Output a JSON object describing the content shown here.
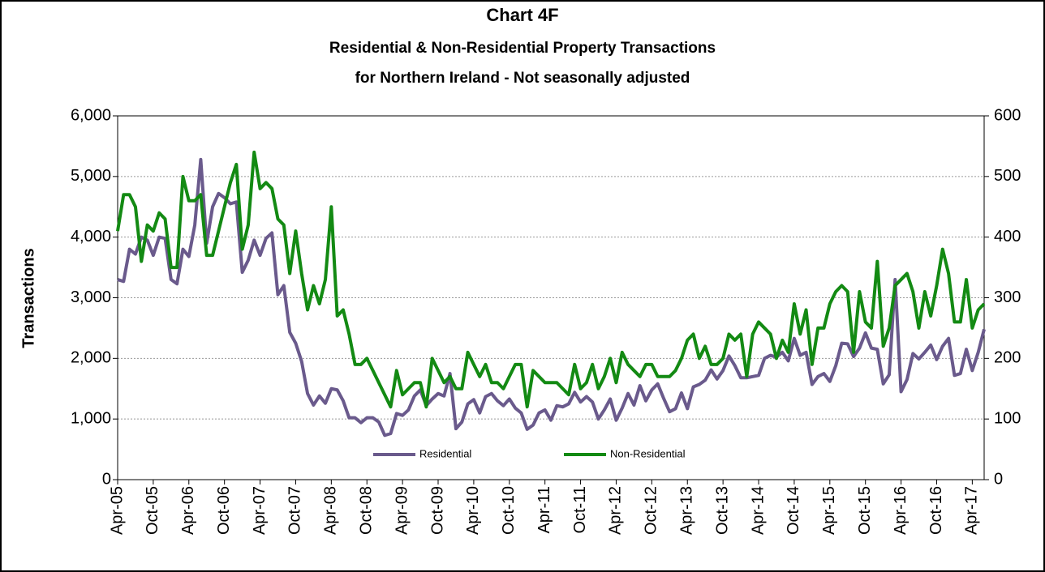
{
  "chart_data": {
    "type": "line",
    "title": "Chart 4F",
    "subtitle": [
      "Residential & Non-Residential Property Transactions",
      "for Northern Ireland - Not seasonally adjusted"
    ],
    "y_label": "Transactions",
    "categories": [
      "Apr-05",
      null,
      null,
      null,
      null,
      null,
      "Oct-05",
      null,
      null,
      null,
      null,
      null,
      "Apr-06",
      null,
      null,
      null,
      null,
      null,
      "Oct-06",
      null,
      null,
      null,
      null,
      null,
      "Apr-07",
      null,
      null,
      null,
      null,
      null,
      "Oct-07",
      null,
      null,
      null,
      null,
      null,
      "Apr-08",
      null,
      null,
      null,
      null,
      null,
      "Oct-08",
      null,
      null,
      null,
      null,
      null,
      "Apr-09",
      null,
      null,
      null,
      null,
      null,
      "Oct-09",
      null,
      null,
      null,
      null,
      null,
      "Apr-10",
      null,
      null,
      null,
      null,
      null,
      "Oct-10",
      null,
      null,
      null,
      null,
      null,
      "Apr-11",
      null,
      null,
      null,
      null,
      null,
      "Oct-11",
      null,
      null,
      null,
      null,
      null,
      "Apr-12",
      null,
      null,
      null,
      null,
      null,
      "Oct-12",
      null,
      null,
      null,
      null,
      null,
      "Apr-13",
      null,
      null,
      null,
      null,
      null,
      "Oct-13",
      null,
      null,
      null,
      null,
      null,
      "Apr-14",
      null,
      null,
      null,
      null,
      null,
      "Oct-14",
      null,
      null,
      null,
      null,
      null,
      "Apr-15",
      null,
      null,
      null,
      null,
      null,
      "Oct-15",
      null,
      null,
      null,
      null,
      null,
      "Apr-16",
      null,
      null,
      null,
      null,
      null,
      "Oct-16",
      null,
      null,
      null,
      null,
      null,
      "Apr-17",
      null,
      null
    ],
    "series": [
      {
        "name": "Residential",
        "color": "#6a5a8c",
        "values": [
          3300,
          3270,
          3800,
          3720,
          4000,
          3950,
          3700,
          4000,
          3980,
          3300,
          3230,
          3800,
          3680,
          4200,
          5280,
          3900,
          4500,
          4720,
          4650,
          4550,
          4580,
          3420,
          3620,
          3950,
          3700,
          3980,
          4070,
          3050,
          3200,
          2430,
          2250,
          1950,
          1420,
          1230,
          1380,
          1260,
          1500,
          1480,
          1300,
          1020,
          1020,
          940,
          1020,
          1020,
          950,
          730,
          760,
          1090,
          1060,
          1150,
          1380,
          1480,
          1220,
          1330,
          1420,
          1380,
          1750,
          840,
          950,
          1250,
          1320,
          1100,
          1370,
          1420,
          1300,
          1220,
          1330,
          1180,
          1100,
          830,
          900,
          1100,
          1150,
          980,
          1220,
          1200,
          1250,
          1440,
          1280,
          1370,
          1280,
          1000,
          1150,
          1330,
          980,
          1180,
          1420,
          1230,
          1550,
          1300,
          1480,
          1580,
          1340,
          1120,
          1170,
          1430,
          1170,
          1530,
          1570,
          1640,
          1810,
          1660,
          1800,
          2040,
          1880,
          1680,
          1680,
          1700,
          1720,
          2000,
          2050,
          2020,
          2100,
          1960,
          2330,
          2050,
          2100,
          1570,
          1700,
          1750,
          1620,
          1880,
          2250,
          2240,
          2030,
          2170,
          2420,
          2170,
          2150,
          1580,
          1730,
          3300,
          1450,
          1650,
          2080,
          1990,
          2100,
          2220,
          1980,
          2200,
          2330,
          1720,
          1750,
          2150,
          1800,
          2100,
          2480
        ]
      },
      {
        "name": "Non-Residential",
        "color": "#138a13",
        "axis": "y2",
        "values": [
          410,
          470,
          470,
          450,
          360,
          420,
          410,
          440,
          430,
          350,
          350,
          500,
          460,
          460,
          470,
          370,
          370,
          410,
          450,
          490,
          520,
          380,
          420,
          540,
          480,
          490,
          480,
          430,
          420,
          340,
          410,
          340,
          280,
          320,
          290,
          330,
          450,
          270,
          280,
          240,
          190,
          190,
          200,
          180,
          160,
          140,
          120,
          180,
          140,
          150,
          160,
          160,
          120,
          200,
          180,
          160,
          170,
          150,
          150,
          210,
          190,
          170,
          190,
          160,
          160,
          150,
          170,
          190,
          190,
          120,
          180,
          170,
          160,
          160,
          160,
          150,
          140,
          190,
          150,
          160,
          190,
          150,
          170,
          200,
          160,
          210,
          190,
          180,
          170,
          190,
          190,
          170,
          170,
          170,
          180,
          200,
          230,
          240,
          200,
          220,
          190,
          190,
          200,
          240,
          230,
          240,
          170,
          240,
          260,
          250,
          240,
          200,
          230,
          210,
          290,
          240,
          280,
          190,
          250,
          250,
          290,
          310,
          320,
          310,
          210,
          310,
          260,
          250,
          360,
          220,
          250,
          320,
          330,
          340,
          310,
          250,
          310,
          270,
          320,
          380,
          340,
          260,
          260,
          330,
          250,
          280,
          290
        ]
      }
    ],
    "ylim": [
      0,
      6000
    ],
    "yticks": [
      0,
      {
        "value": 1000,
        "label": "1,000"
      },
      {
        "value": 2000,
        "label": "2,000"
      },
      {
        "value": 3000,
        "label": "3,000"
      },
      {
        "value": 4000,
        "label": "4,000"
      },
      {
        "value": 5000,
        "label": "5,000"
      },
      {
        "value": 6000,
        "label": "6,000"
      }
    ],
    "y2lim": [
      0,
      600
    ],
    "y2ticks": [
      0,
      100,
      200,
      300,
      400,
      500,
      600
    ],
    "grid": true,
    "legend": "bottom"
  }
}
